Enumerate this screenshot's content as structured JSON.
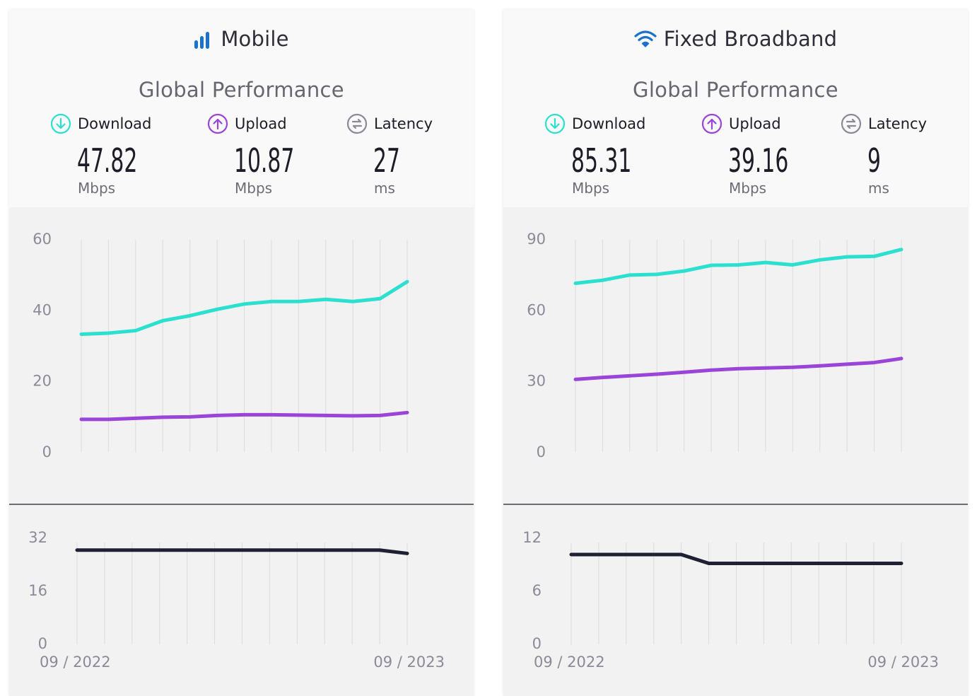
{
  "panels": [
    {
      "title": "Mobile",
      "title_icon": "cell-signal-icon",
      "section_title": "Global Performance",
      "metrics": [
        {
          "label": "Download",
          "value": "47.82",
          "unit": "Mbps",
          "icon": "download-arrow-icon",
          "color": "#2ce0d0"
        },
        {
          "label": "Upload",
          "value": "10.87",
          "unit": "Mbps",
          "icon": "upload-arrow-icon",
          "color": "#9b45d8"
        },
        {
          "label": "Latency",
          "value": "27",
          "unit": "ms",
          "icon": "latency-icon",
          "color": "#8b8b97"
        }
      ]
    },
    {
      "title": "Fixed Broadband",
      "title_icon": "wifi-icon",
      "section_title": "Global Performance",
      "metrics": [
        {
          "label": "Download",
          "value": "85.31",
          "unit": "Mbps",
          "icon": "download-arrow-icon",
          "color": "#2ce0d0"
        },
        {
          "label": "Upload",
          "value": "39.16",
          "unit": "Mbps",
          "icon": "upload-arrow-icon",
          "color": "#9b45d8"
        },
        {
          "label": "Latency",
          "value": "9",
          "unit": "ms",
          "icon": "latency-icon",
          "color": "#8b8b97"
        }
      ]
    }
  ],
  "colors": {
    "download": "#2ce0d0",
    "upload": "#9b45d8",
    "latency": "#1f2033",
    "icon_blue": "#1a73c8",
    "grid": "#dcdce0"
  },
  "chart_data": [
    {
      "type": "line",
      "panel": "Mobile",
      "x_labels": [
        "09 / 2022",
        "09 / 2023"
      ],
      "x": [
        "09/2022",
        "10/2022",
        "11/2022",
        "12/2022",
        "01/2023",
        "02/2023",
        "03/2023",
        "04/2023",
        "05/2023",
        "06/2023",
        "07/2023",
        "08/2023",
        "09/2023"
      ],
      "speed": {
        "yticks": [
          "60",
          "40",
          "20",
          "0"
        ],
        "ylim": [
          0,
          60
        ],
        "series": [
          {
            "name": "Download",
            "values": [
              33.0,
              33.3,
              34.0,
              36.8,
              38.2,
              40.0,
              41.5,
              42.2,
              42.2,
              42.8,
              42.2,
              43.0,
              47.8
            ]
          },
          {
            "name": "Upload",
            "values": [
              9.0,
              9.0,
              9.3,
              9.6,
              9.7,
              10.1,
              10.3,
              10.3,
              10.2,
              10.1,
              10.0,
              10.1,
              10.9
            ]
          }
        ]
      },
      "latency": {
        "yticks": [
          "32",
          "16",
          "0"
        ],
        "ylim": [
          0,
          32
        ],
        "series": [
          {
            "name": "Latency",
            "values": [
              28,
              28,
              28,
              28,
              28,
              28,
              28,
              28,
              28,
              28,
              28,
              28,
              27
            ]
          }
        ]
      }
    },
    {
      "type": "line",
      "panel": "Fixed Broadband",
      "x_labels": [
        "09 / 2022",
        "09 / 2023"
      ],
      "x": [
        "09/2022",
        "10/2022",
        "11/2022",
        "12/2022",
        "01/2023",
        "02/2023",
        "03/2023",
        "04/2023",
        "05/2023",
        "06/2023",
        "07/2023",
        "08/2023",
        "09/2023"
      ],
      "speed": {
        "yticks": [
          "90",
          "60",
          "30",
          "0"
        ],
        "ylim": [
          0,
          90
        ],
        "series": [
          {
            "name": "Download",
            "values": [
              71.0,
              72.3,
              74.5,
              74.8,
              76.2,
              78.6,
              78.8,
              79.8,
              78.8,
              80.9,
              82.2,
              82.4,
              85.3
            ]
          },
          {
            "name": "Upload",
            "values": [
              30.4,
              31.2,
              31.9,
              32.6,
              33.4,
              34.3,
              34.9,
              35.2,
              35.5,
              36.1,
              36.8,
              37.5,
              39.2
            ]
          }
        ]
      },
      "latency": {
        "yticks": [
          "12",
          "6",
          "0"
        ],
        "ylim": [
          0,
          12
        ],
        "series": [
          {
            "name": "Latency",
            "values": [
              10,
              10,
              10,
              10,
              10,
              9,
              9,
              9,
              9,
              9,
              9,
              9,
              9
            ]
          }
        ]
      }
    }
  ]
}
